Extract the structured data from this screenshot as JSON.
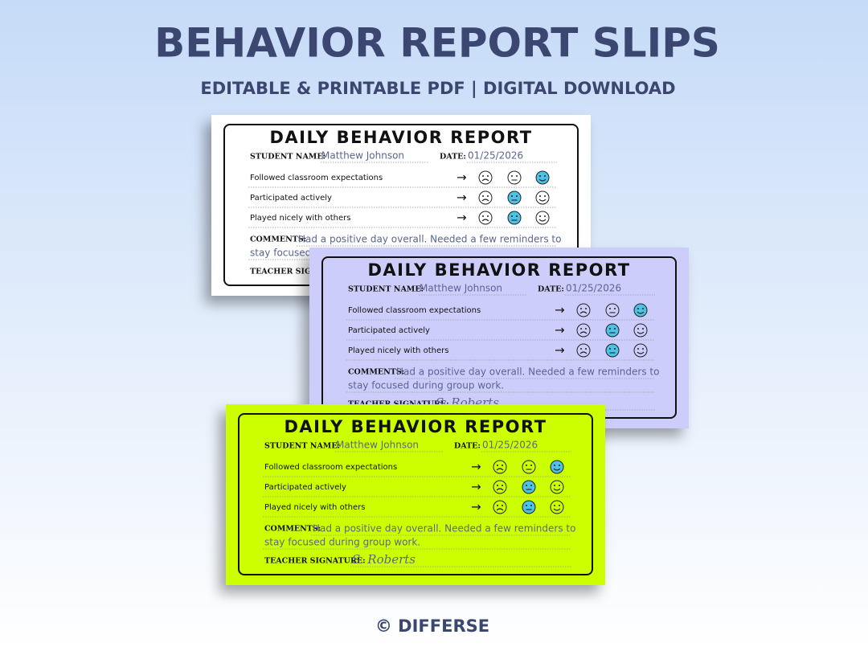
{
  "header": {
    "title": "BEHAVIOR REPORT SLIPS",
    "subtitle": "EDITABLE & PRINTABLE PDF | DIGITAL DOWNLOAD"
  },
  "slip": {
    "heading": "DAILY BEHAVIOR REPORT",
    "student_label": "STUDENT NAME:",
    "student_name": "Matthew Johnson",
    "date_label": "DATE:",
    "date": "01/25/2026",
    "rows": [
      "Followed classroom expectations",
      "Participated actively",
      "Played nicely with others"
    ],
    "arrow": "→",
    "comments_label": "COMMENTS:",
    "comments": [
      "Had a positive day overall. Needed a few reminders to",
      "stay focused during group work."
    ],
    "signature_label": "TEACHER SIGNATURE:",
    "signature": "S. Roberts"
  },
  "slip_colors": [
    "#ffffff",
    "#cdcdfb",
    "#ccff00"
  ],
  "footer": "© DIFFERSE"
}
